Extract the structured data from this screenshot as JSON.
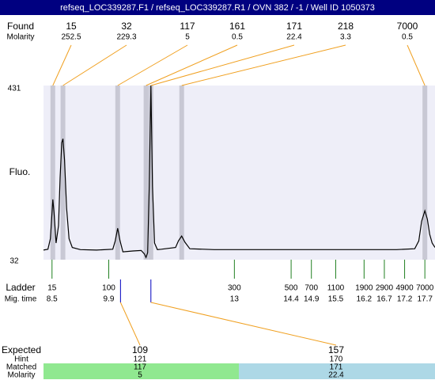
{
  "title": "refseq_LOC339287.F1 / refseq_LOC339287.R1 / OVN 382 / -1 / Well ID 1050373",
  "chart_data": {
    "type": "line",
    "ylabel": "Fluo.",
    "ylim": [
      32,
      431
    ],
    "yticks": [
      32,
      431
    ],
    "xlim": [
      8.29,
      17.95
    ],
    "series": [
      {
        "color": "#000000",
        "x": [
          8.29,
          8.4,
          8.46,
          8.5,
          8.52,
          8.55,
          8.6,
          8.66,
          8.7,
          8.74,
          8.77,
          8.81,
          8.86,
          8.92,
          9.0,
          9.2,
          9.6,
          10.0,
          10.06,
          10.12,
          10.18,
          10.25,
          10.5,
          10.7,
          10.78,
          10.82,
          10.86,
          10.9,
          10.94,
          10.98,
          11.03,
          11.1,
          11.2,
          11.55,
          11.62,
          11.7,
          11.78,
          11.9,
          12.5,
          13.5,
          15,
          16,
          17,
          17.45,
          17.55,
          17.62,
          17.7,
          17.76,
          17.82,
          17.88,
          17.95
        ],
        "values": [
          54,
          56,
          80,
          140,
          170,
          140,
          70,
          110,
          220,
          300,
          309,
          260,
          150,
          80,
          60,
          55,
          54,
          56,
          75,
          104,
          75,
          50,
          52,
          53,
          45,
          37,
          48,
          200,
          431,
          200,
          70,
          55,
          56,
          60,
          75,
          86,
          72,
          57,
          55,
          55,
          55,
          55,
          55,
          57,
          75,
          120,
          144,
          125,
          90,
          70,
          60
        ]
      }
    ],
    "found_label": "Found",
    "found_molarity_label": "Molarity",
    "found_sizes": [
      15,
      32,
      117,
      161,
      171,
      218,
      7000
    ],
    "found_molarity": [
      252.5,
      229.3,
      5,
      0.5,
      22.4,
      3.3,
      0.5
    ],
    "found_times": [
      8.52,
      8.77,
      10.12,
      10.82,
      10.94,
      11.7,
      17.7
    ],
    "ladder_label": "Ladder",
    "mig_time_label": "Mig. time",
    "ladder_sizes": [
      15,
      100,
      300,
      500,
      700,
      1100,
      1900,
      2900,
      4900,
      7000
    ],
    "ladder_times": [
      8.5,
      9.9,
      13,
      14.4,
      14.9,
      15.5,
      16.2,
      16.7,
      17.2,
      17.7
    ],
    "expected_label": "Expected",
    "hint_label": "Hint",
    "matched_label": "Matched",
    "molarity_label": "Molarity",
    "expected_sizes": [
      109,
      157
    ],
    "expected_times": [
      10.19,
      10.94
    ],
    "hint": [
      121,
      170
    ],
    "matched": [
      117,
      171
    ],
    "matched_molarity": [
      5,
      22.4
    ]
  }
}
